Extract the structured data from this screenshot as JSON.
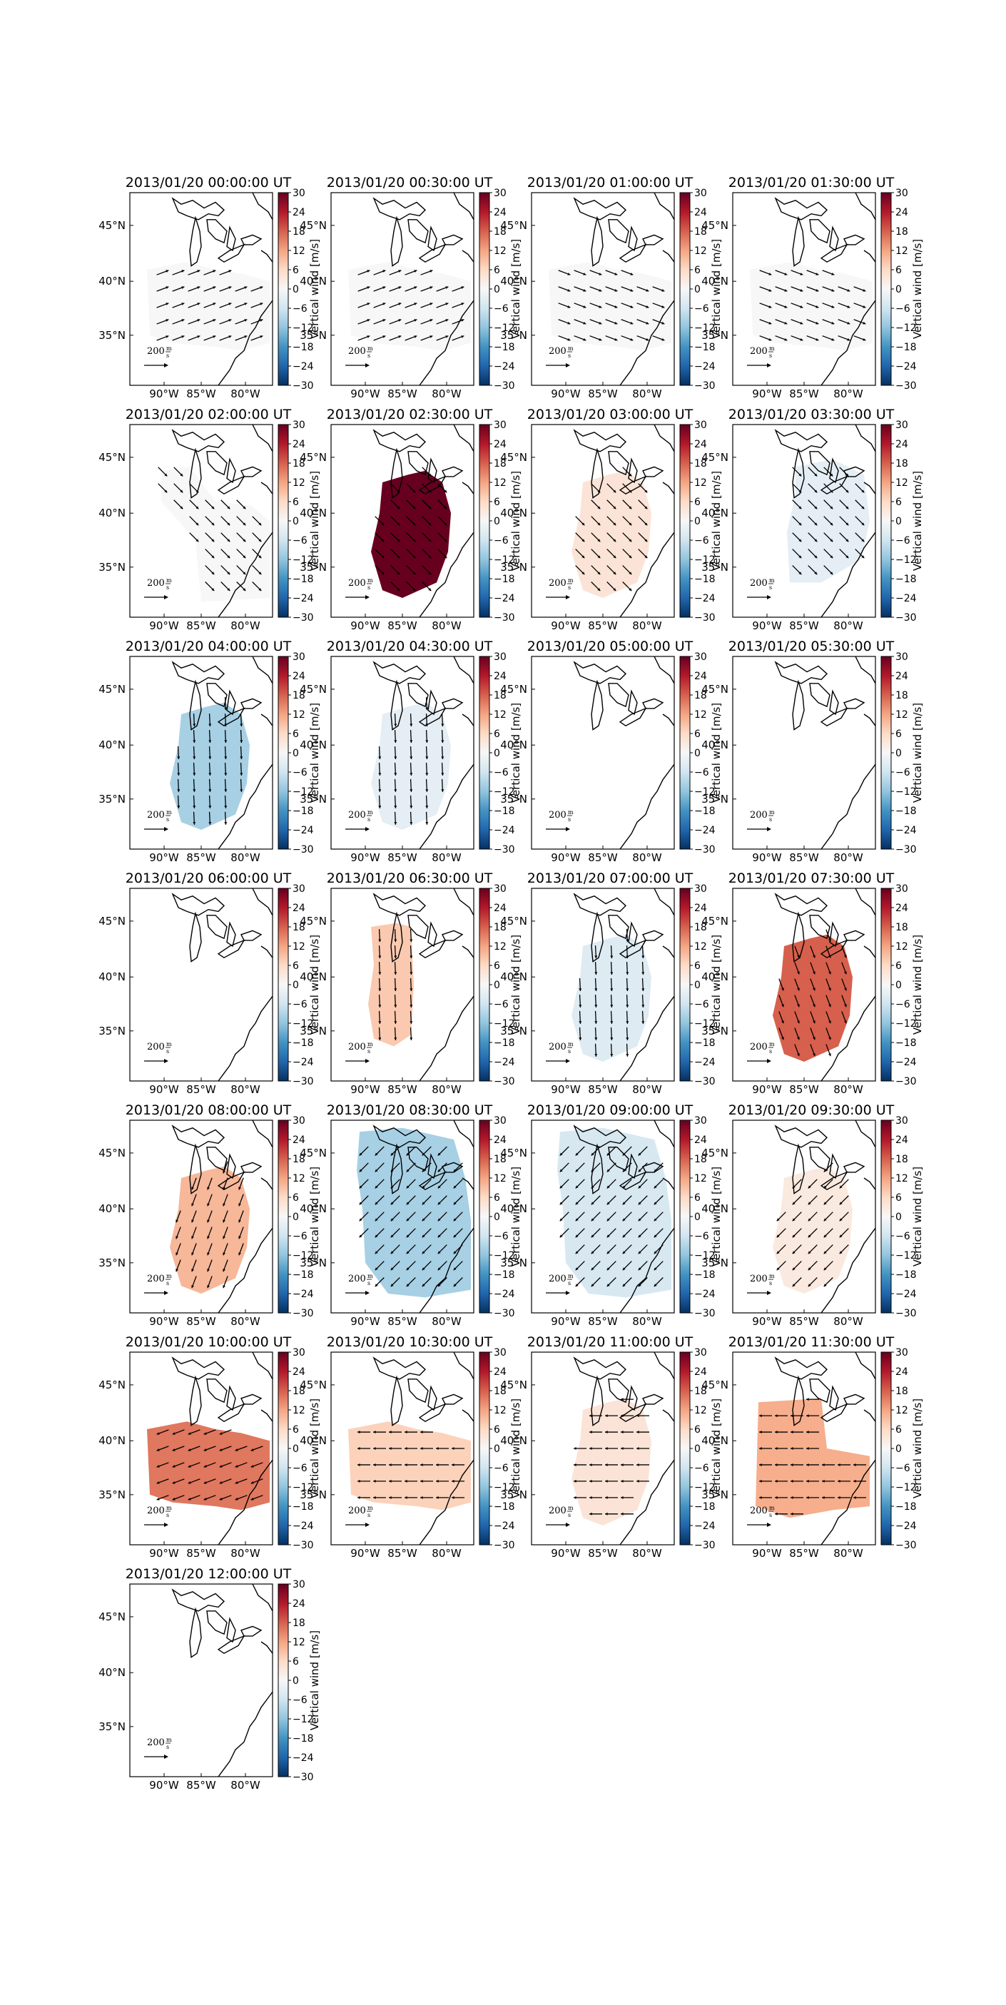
{
  "colorbar": {
    "label": "Vertical wind [m/s]",
    "ticks": [
      "30",
      "24",
      "18",
      "12",
      "6",
      "0",
      "−6",
      "−12",
      "−18",
      "−24",
      "−30"
    ],
    "vmin": -30,
    "vmax": 30,
    "cmap": "RdBu_r",
    "stops": [
      "#053061",
      "#2166ac",
      "#4393c3",
      "#92c5de",
      "#d1e5f0",
      "#f7f7f7",
      "#fddbc7",
      "#f4a582",
      "#d6604d",
      "#b2182b",
      "#67001f"
    ]
  },
  "axes": {
    "xticks": [
      "90°W",
      "85°W",
      "80°W"
    ],
    "yticks": [
      "45°N",
      "40°N",
      "35°N"
    ]
  },
  "scale_arrow": {
    "value": "200",
    "unit_top": "m",
    "unit_bottom": "s"
  },
  "colors": {
    "coast": "#000000",
    "arrow": "#000000",
    "background": "#ffffff"
  },
  "chart_data": {
    "type": "heatmap",
    "description_of_values": "estimated uniform vertical wind over the covered region per panel (m/s)",
    "panels": [
      {
        "title": "2013/01/20 00:00:00 UT",
        "value": 0,
        "region": "south",
        "arrow_dir": "east-northeast"
      },
      {
        "title": "2013/01/20 00:30:00 UT",
        "value": 0,
        "region": "south",
        "arrow_dir": "east-northeast"
      },
      {
        "title": "2013/01/20 01:00:00 UT",
        "value": 0,
        "region": "south",
        "arrow_dir": "east-southeast"
      },
      {
        "title": "2013/01/20 01:30:00 UT",
        "value": 0,
        "region": "south",
        "arrow_dir": "east-southeast"
      },
      {
        "title": "2013/01/20 02:00:00 UT",
        "value": 0,
        "region": "southeast",
        "arrow_dir": "southeast"
      },
      {
        "title": "2013/01/20 02:30:00 UT",
        "value": 30,
        "region": "central",
        "arrow_dir": "southeast"
      },
      {
        "title": "2013/01/20 03:00:00 UT",
        "value": 4,
        "region": "central",
        "arrow_dir": "southeast"
      },
      {
        "title": "2013/01/20 03:30:00 UT",
        "value": -3,
        "region": "east",
        "arrow_dir": "southeast"
      },
      {
        "title": "2013/01/20 04:00:00 UT",
        "value": -10,
        "region": "central",
        "arrow_dir": "south"
      },
      {
        "title": "2013/01/20 04:30:00 UT",
        "value": -3,
        "region": "central",
        "arrow_dir": "south"
      },
      {
        "title": "2013/01/20 05:00:00 UT",
        "value": null,
        "region": "none",
        "arrow_dir": "none"
      },
      {
        "title": "2013/01/20 05:30:00 UT",
        "value": null,
        "region": "none",
        "arrow_dir": "none"
      },
      {
        "title": "2013/01/20 06:00:00 UT",
        "value": null,
        "region": "none",
        "arrow_dir": "none"
      },
      {
        "title": "2013/01/20 06:30:00 UT",
        "value": 8,
        "region": "west",
        "arrow_dir": "south"
      },
      {
        "title": "2013/01/20 07:00:00 UT",
        "value": -4,
        "region": "central",
        "arrow_dir": "south"
      },
      {
        "title": "2013/01/20 07:30:00 UT",
        "value": 18,
        "region": "central",
        "arrow_dir": "south-southeast"
      },
      {
        "title": "2013/01/20 08:00:00 UT",
        "value": 10,
        "region": "central",
        "arrow_dir": "south-southwest"
      },
      {
        "title": "2013/01/20 08:30:00 UT",
        "value": -10,
        "region": "large",
        "arrow_dir": "southwest"
      },
      {
        "title": "2013/01/20 09:00:00 UT",
        "value": -5,
        "region": "large",
        "arrow_dir": "southwest"
      },
      {
        "title": "2013/01/20 09:30:00 UT",
        "value": 3,
        "region": "central",
        "arrow_dir": "southwest"
      },
      {
        "title": "2013/01/20 10:00:00 UT",
        "value": 16,
        "region": "south",
        "arrow_dir": "west-southwest"
      },
      {
        "title": "2013/01/20 10:30:00 UT",
        "value": 7,
        "region": "south",
        "arrow_dir": "west"
      },
      {
        "title": "2013/01/20 11:00:00 UT",
        "value": 4,
        "region": "central",
        "arrow_dir": "west"
      },
      {
        "title": "2013/01/20 11:30:00 UT",
        "value": 11,
        "region": "southwest",
        "arrow_dir": "west"
      },
      {
        "title": "2013/01/20 12:00:00 UT",
        "value": null,
        "region": "none",
        "arrow_dir": "none"
      }
    ]
  }
}
